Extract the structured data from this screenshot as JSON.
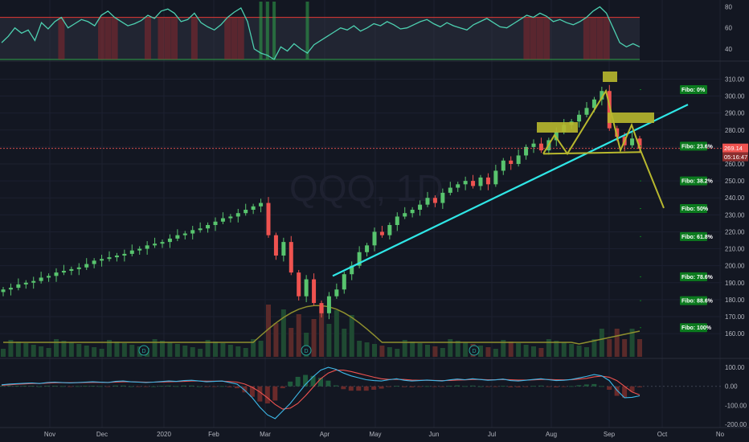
{
  "chart_data": [
    {
      "type": "line",
      "panel": "rsi",
      "y_ticks": [
        "80",
        "60",
        "40"
      ],
      "ylim": [
        30,
        85
      ],
      "overbought": 70,
      "oversold": 30,
      "colors": {
        "line": "#4dd0b0",
        "band": "#3b3f4f",
        "overbought": "#e53935",
        "oversold": "#2fa54a"
      },
      "values": [
        46,
        52,
        60,
        55,
        58,
        48,
        65,
        59,
        66,
        70,
        60,
        64,
        68,
        66,
        62,
        72,
        76,
        70,
        66,
        62,
        64,
        67,
        72,
        69,
        76,
        78,
        74,
        66,
        68,
        74,
        65,
        61,
        58,
        63,
        70,
        75,
        79,
        66,
        40,
        36,
        34,
        30,
        42,
        38,
        45,
        40,
        36,
        44,
        48,
        52,
        56,
        60,
        58,
        62,
        57,
        60,
        64,
        62,
        66,
        63,
        59,
        60,
        63,
        66,
        68,
        64,
        61,
        65,
        62,
        60,
        58,
        63,
        66,
        69,
        65,
        61,
        60,
        64,
        68,
        72,
        70,
        74,
        71,
        66,
        68,
        65,
        63,
        66,
        70,
        76,
        80,
        74,
        60,
        46,
        42,
        45,
        42
      ]
    },
    {
      "type": "candlestick",
      "panel": "price",
      "watermark": "QQQ, 1D",
      "y_ticks": [
        "310.00",
        "300.00",
        "290.00",
        "280.00",
        "270.00",
        "260.00",
        "250.00",
        "240.00",
        "230.00",
        "220.00",
        "210.00",
        "200.00",
        "190.00",
        "180.00",
        "170.00",
        "160.00"
      ],
      "ylim": [
        152,
        314
      ],
      "x_ticks": [
        "Nov",
        "Dec",
        "2020",
        "Feb",
        "Mar",
        "Apr",
        "May",
        "Jun",
        "Jul",
        "Aug",
        "Sep",
        "Oct",
        "No"
      ],
      "last_price": 269.14,
      "last_price_label": "269.14",
      "countdown_label": "05:16:47",
      "closes": [
        186,
        187,
        189,
        190,
        191,
        193,
        194,
        196,
        197,
        198,
        199,
        201,
        203,
        204,
        205,
        206,
        207,
        209,
        210,
        212,
        213,
        214,
        216,
        218,
        219,
        221,
        222,
        224,
        226,
        228,
        229,
        231,
        233,
        235,
        237,
        218,
        206,
        214,
        196,
        182,
        192,
        178,
        172,
        182,
        186,
        195,
        200,
        208,
        212,
        220,
        218,
        224,
        229,
        231,
        233,
        236,
        240,
        237,
        243,
        246,
        248,
        250,
        247,
        252,
        248,
        256,
        262,
        260,
        265,
        270,
        272,
        268,
        274,
        279,
        283,
        285,
        289,
        293,
        298,
        303,
        281,
        276,
        271,
        275,
        269
      ],
      "colors": {
        "up": "#58c46e",
        "down": "#ef5350"
      },
      "volume_colors": {
        "up": "#1f4a32",
        "down": "#5a2a2a"
      },
      "volume_ma_color": "#8f8f2e",
      "trendline_color": "#2fe6e6",
      "pattern_color": "#b8b82e",
      "dividend_marker": "D",
      "fibo_levels": [
        {
          "label": "Fibo:   0%",
          "price": 303.8
        },
        {
          "label": "Fibo: 23.6%",
          "price": 270.5
        },
        {
          "label": "Fibo: 38.2%",
          "price": 250.0
        },
        {
          "label": "Fibo:   50%",
          "price": 233.7
        },
        {
          "label": "Fibo: 61.8%",
          "price": 217.2
        },
        {
          "label": "Fibo: 78.6%",
          "price": 193.5
        },
        {
          "label": "Fibo: 88.6%",
          "price": 179.4
        },
        {
          "label": "Fibo: 100%",
          "price": 163.5
        }
      ],
      "fibo_color": "#0b7a1e"
    },
    {
      "type": "line",
      "panel": "macd",
      "y_ticks": [
        "100.00",
        "0.00",
        "-100.00",
        "-200.00"
      ],
      "ylim": [
        -200,
        130
      ],
      "colors": {
        "macd": "#3db8e8",
        "signal": "#ef5350"
      },
      "macd": [
        8,
        12,
        14,
        16,
        18,
        15,
        20,
        22,
        20,
        18,
        20,
        22,
        24,
        22,
        20,
        26,
        28,
        24,
        22,
        20,
        22,
        25,
        28,
        26,
        30,
        32,
        28,
        24,
        26,
        28,
        20,
        12,
        -20,
        -60,
        -110,
        -150,
        -170,
        -130,
        -90,
        -40,
        10,
        50,
        85,
        100,
        90,
        70,
        55,
        45,
        35,
        30,
        28,
        35,
        40,
        32,
        28,
        30,
        33,
        30,
        28,
        34,
        38,
        35,
        40,
        36,
        32,
        34,
        38,
        30,
        28,
        32,
        36,
        40,
        35,
        30,
        32,
        36,
        44,
        52,
        62,
        55,
        30,
        -20,
        -60,
        -58,
        -50
      ],
      "signal": [
        5,
        8,
        11,
        13,
        15,
        15,
        17,
        19,
        19,
        19,
        19,
        20,
        21,
        21,
        21,
        22,
        24,
        24,
        23,
        22,
        22,
        23,
        24,
        25,
        26,
        28,
        28,
        27,
        27,
        27,
        25,
        22,
        12,
        -5,
        -30,
        -60,
        -95,
        -120,
        -115,
        -90,
        -50,
        -5,
        40,
        70,
        85,
        85,
        78,
        68,
        58,
        48,
        40,
        36,
        37,
        36,
        33,
        32,
        32,
        31,
        30,
        31,
        33,
        34,
        36,
        36,
        35,
        35,
        36,
        35,
        33,
        33,
        34,
        36,
        36,
        35,
        34,
        35,
        38,
        42,
        50,
        54,
        48,
        30,
        0,
        -30,
        -45
      ]
    }
  ]
}
